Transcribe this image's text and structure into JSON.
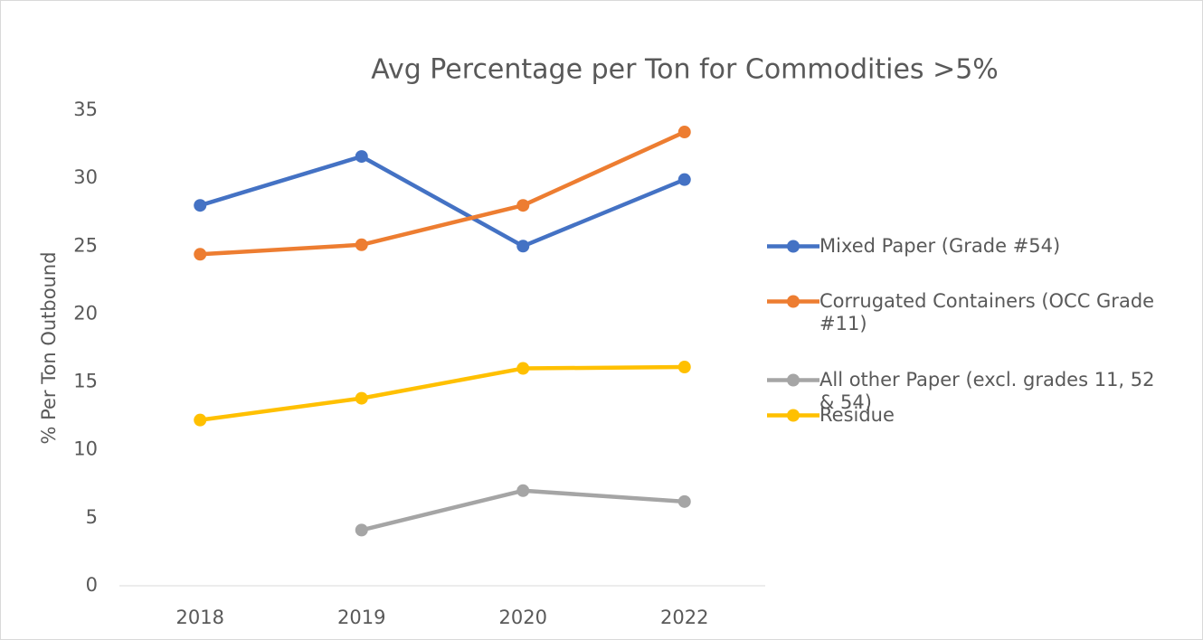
{
  "chart_data": {
    "type": "line",
    "title": "Avg Percentage per Ton for Commodities >5%",
    "y_label": "% Per Ton Outbound",
    "categories": [
      "2018",
      "2019",
      "2020",
      "2022"
    ],
    "series": [
      {
        "name": "Mixed Paper (Grade #54)",
        "color": "#4472c4",
        "values": [
          28.0,
          31.6,
          25.0,
          29.9
        ]
      },
      {
        "name": "Corrugated Containers (OCC Grade #11)",
        "color": "#ed7d31",
        "values": [
          24.4,
          25.1,
          28.0,
          33.4
        ]
      },
      {
        "name": "All other Paper (excl. grades 11, 52 & 54)",
        "color": "#a5a5a5",
        "values": [
          null,
          4.1,
          7.0,
          6.2
        ]
      },
      {
        "name": "Residue",
        "color": "#ffc000",
        "values": [
          12.2,
          13.8,
          16.0,
          16.1
        ]
      }
    ],
    "ylim": [
      0,
      35
    ],
    "yticks": [
      0,
      5,
      10,
      15,
      20,
      25,
      30,
      35
    ],
    "grid": false,
    "legend": "right"
  }
}
